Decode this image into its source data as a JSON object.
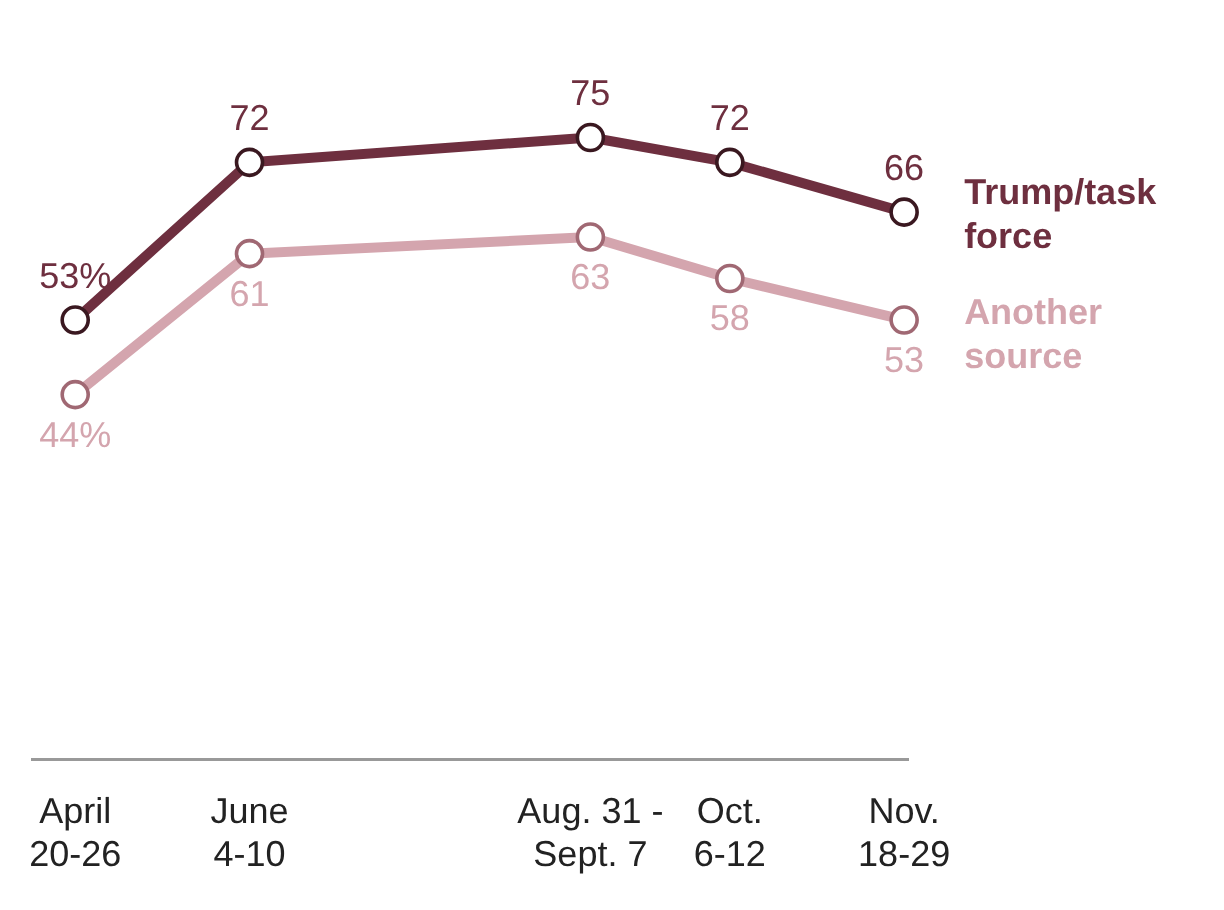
{
  "chart_data": {
    "type": "line",
    "x": [
      "2020-04-23",
      "2020-06-07",
      "2020-09-03",
      "2020-10-09",
      "2020-11-23"
    ],
    "xlim": [
      "2020-04-12",
      "2020-11-24"
    ],
    "xticks": [
      {
        "value": "2020-04-23",
        "label": "April\n20-26"
      },
      {
        "value": "2020-06-07",
        "label": "June\n4-10"
      },
      {
        "value": "2020-09-03",
        "label": "Aug. 31 -\nSept. 7"
      },
      {
        "value": "2020-10-09",
        "label": "Oct.\n6-12"
      },
      {
        "value": "2020-11-23",
        "label": "Nov.\n18-29"
      }
    ],
    "tick_labels": "x",
    "grid": false,
    "legend": false,
    "marker": "circle",
    "line_style": "solid",
    "series": [
      {
        "name": "Trump/task\nforce",
        "color": "#6e2f3f",
        "values": [
          53,
          72,
          75,
          72,
          66
        ],
        "value_labels": [
          "53%",
          "72",
          "75",
          "72",
          "66"
        ]
      },
      {
        "name": "Another\nsource",
        "color": "#d4a5ae",
        "values": [
          44,
          61,
          63,
          58,
          53
        ],
        "value_labels": [
          "44%",
          "61",
          "63",
          "58",
          "53"
        ]
      }
    ]
  }
}
